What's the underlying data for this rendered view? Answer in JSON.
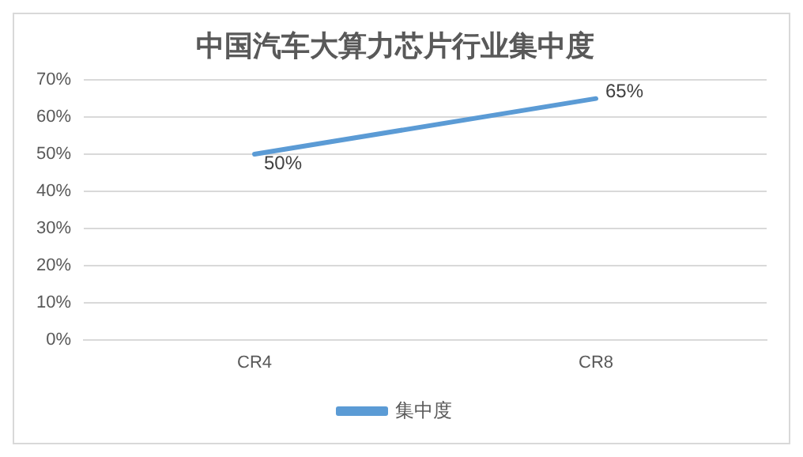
{
  "chart_data": {
    "type": "line",
    "title": "中国汽车大算力芯片行业集中度",
    "categories": [
      "CR4",
      "CR8"
    ],
    "series": [
      {
        "name": "集中度",
        "color": "#5b9bd5",
        "values": [
          50,
          65
        ],
        "value_labels": [
          "50%",
          "65%"
        ]
      }
    ],
    "ylim": [
      0,
      70
    ],
    "yticks": [
      {
        "value": 0,
        "label": "0%"
      },
      {
        "value": 10,
        "label": "10%"
      },
      {
        "value": 20,
        "label": "20%"
      },
      {
        "value": 30,
        "label": "30%"
      },
      {
        "value": 40,
        "label": "40%"
      },
      {
        "value": 50,
        "label": "50%"
      },
      {
        "value": 60,
        "label": "60%"
      },
      {
        "value": 70,
        "label": "70%"
      }
    ],
    "grid": "y",
    "legend": "bottom",
    "marker": "none",
    "line_style": "solid"
  }
}
